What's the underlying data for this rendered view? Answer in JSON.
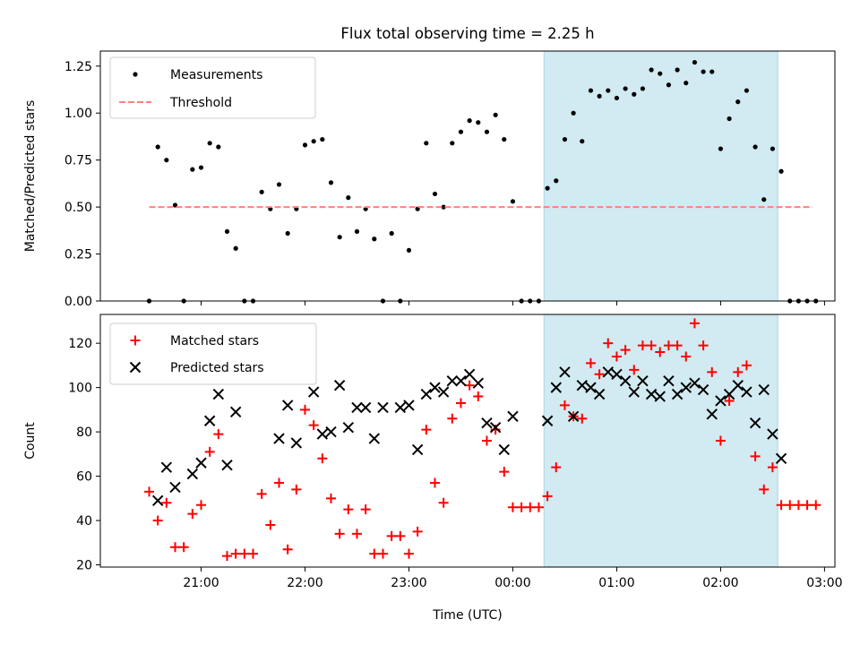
{
  "chart_data": [
    {
      "type": "scatter",
      "title": "Flux total observing time = 2.25 h",
      "ylabel": "Matched/Predicted stars",
      "xlabel": "",
      "xlim_hours": [
        20.03,
        27.1
      ],
      "ylim": [
        0,
        1.33
      ],
      "x_ticks": [
        "21:00",
        "22:00",
        "23:00",
        "00:00",
        "01:00",
        "02:00",
        "03:00"
      ],
      "y_ticks": [
        "0.00",
        "0.25",
        "0.50",
        "0.75",
        "1.00",
        "1.25"
      ],
      "shaded_span": {
        "start": "00:18",
        "end": "02:33",
        "color": "#add8e6"
      },
      "legend": {
        "position": "upper-left",
        "entries": [
          "Measurements",
          "Threshold"
        ]
      },
      "threshold": {
        "name": "Threshold",
        "y": 0.5,
        "x_start": "20:30",
        "x_end": "02:53",
        "color": "#ff8080"
      },
      "series": [
        {
          "name": "Measurements",
          "color": "#000000",
          "marker": "dot",
          "x": [
            "20:30",
            "20:35",
            "20:40",
            "20:45",
            "20:50",
            "20:55",
            "21:00",
            "21:05",
            "21:10",
            "21:15",
            "21:20",
            "21:25",
            "21:30",
            "21:35",
            "21:40",
            "21:45",
            "21:50",
            "21:55",
            "22:00",
            "22:05",
            "22:10",
            "22:15",
            "22:20",
            "22:25",
            "22:30",
            "22:35",
            "22:40",
            "22:45",
            "22:50",
            "22:55",
            "23:00",
            "23:05",
            "23:10",
            "23:15",
            "23:20",
            "23:25",
            "23:30",
            "23:35",
            "23:40",
            "23:45",
            "23:50",
            "23:55",
            "00:00",
            "00:05",
            "00:10",
            "00:15",
            "00:20",
            "00:25",
            "00:30",
            "00:35",
            "00:40",
            "00:45",
            "00:50",
            "00:55",
            "01:00",
            "01:05",
            "01:10",
            "01:15",
            "01:20",
            "01:25",
            "01:30",
            "01:35",
            "01:40",
            "01:45",
            "01:50",
            "01:55",
            "02:00",
            "02:05",
            "02:10",
            "02:15",
            "02:20",
            "02:25",
            "02:30",
            "02:35",
            "02:40",
            "02:45",
            "02:50",
            "02:55"
          ],
          "y": [
            0.0,
            0.82,
            0.75,
            0.51,
            0.0,
            0.7,
            0.71,
            0.84,
            0.82,
            0.37,
            0.28,
            0.0,
            0.0,
            0.58,
            0.49,
            0.62,
            0.36,
            0.49,
            0.83,
            0.85,
            0.86,
            0.63,
            0.34,
            0.55,
            0.37,
            0.49,
            0.33,
            0.0,
            0.36,
            0.0,
            0.27,
            0.49,
            0.84,
            0.57,
            0.5,
            0.84,
            0.9,
            0.96,
            0.95,
            0.9,
            0.99,
            0.86,
            0.53,
            0.0,
            0.0,
            0.0,
            0.6,
            0.64,
            0.86,
            1.0,
            0.85,
            1.12,
            1.09,
            1.12,
            1.08,
            1.13,
            1.1,
            1.13,
            1.23,
            1.21,
            1.15,
            1.23,
            1.16,
            1.27,
            1.22,
            1.22,
            0.81,
            0.97,
            1.06,
            1.12,
            0.82,
            0.54,
            0.81,
            0.69,
            0.0,
            0.0,
            0.0,
            0.0
          ]
        }
      ]
    },
    {
      "type": "scatter",
      "title": "",
      "ylabel": "Count",
      "xlabel": "Time (UTC)",
      "xlim_hours": [
        20.03,
        27.1
      ],
      "ylim": [
        19,
        133
      ],
      "x_ticks": [
        "21:00",
        "22:00",
        "23:00",
        "00:00",
        "01:00",
        "02:00",
        "03:00"
      ],
      "y_ticks": [
        "20",
        "40",
        "60",
        "80",
        "100",
        "120"
      ],
      "shaded_span": {
        "start": "00:18",
        "end": "02:33",
        "color": "#add8e6"
      },
      "legend": {
        "position": "upper-left",
        "entries": [
          "Matched stars",
          "Predicted stars"
        ]
      },
      "series": [
        {
          "name": "Matched stars",
          "color": "#ff0000",
          "marker": "plus",
          "x": [
            "20:30",
            "20:35",
            "20:40",
            "20:45",
            "20:50",
            "20:55",
            "21:00",
            "21:05",
            "21:10",
            "21:15",
            "21:20",
            "21:25",
            "21:30",
            "21:35",
            "21:40",
            "21:45",
            "21:50",
            "21:55",
            "22:00",
            "22:05",
            "22:10",
            "22:15",
            "22:20",
            "22:25",
            "22:30",
            "22:35",
            "22:40",
            "22:45",
            "22:50",
            "22:55",
            "23:00",
            "23:05",
            "23:10",
            "23:15",
            "23:20",
            "23:25",
            "23:30",
            "23:35",
            "23:40",
            "23:45",
            "23:50",
            "23:55",
            "00:00",
            "00:05",
            "00:10",
            "00:15",
            "00:20",
            "00:25",
            "00:30",
            "00:35",
            "00:40",
            "00:45",
            "00:50",
            "00:55",
            "01:00",
            "01:05",
            "01:10",
            "01:15",
            "01:20",
            "01:25",
            "01:30",
            "01:35",
            "01:40",
            "01:45",
            "01:50",
            "01:55",
            "02:00",
            "02:05",
            "02:10",
            "02:15",
            "02:20",
            "02:25",
            "02:30",
            "02:35",
            "02:40",
            "02:45",
            "02:50",
            "02:55"
          ],
          "y": [
            53,
            40,
            48,
            28,
            28,
            43,
            47,
            71,
            79,
            24,
            25,
            25,
            25,
            52,
            38,
            57,
            27,
            54,
            90,
            83,
            68,
            50,
            34,
            45,
            34,
            45,
            25,
            25,
            33,
            33,
            25,
            35,
            81,
            57,
            48,
            86,
            93,
            101,
            96,
            76,
            81,
            62,
            46,
            46,
            46,
            46,
            51,
            64,
            92,
            87,
            86,
            111,
            106,
            120,
            114,
            117,
            108,
            119,
            119,
            116,
            119,
            119,
            114,
            129,
            119,
            107,
            76,
            94,
            107,
            110,
            69,
            54,
            64,
            47,
            47,
            47,
            47,
            47
          ]
        },
        {
          "name": "Predicted stars",
          "color": "#000000",
          "marker": "x",
          "x": [
            "20:35",
            "20:40",
            "20:45",
            "20:55",
            "21:00",
            "21:05",
            "21:10",
            "21:15",
            "21:20",
            "21:45",
            "21:50",
            "21:55",
            "22:05",
            "22:10",
            "22:15",
            "22:20",
            "22:25",
            "22:30",
            "22:35",
            "22:40",
            "22:45",
            "22:55",
            "23:00",
            "23:05",
            "23:10",
            "23:15",
            "23:20",
            "23:25",
            "23:30",
            "23:35",
            "23:40",
            "23:45",
            "23:50",
            "23:55",
            "00:00",
            "00:20",
            "00:25",
            "00:30",
            "00:35",
            "00:40",
            "00:45",
            "00:50",
            "00:55",
            "01:00",
            "01:05",
            "01:10",
            "01:15",
            "01:20",
            "01:25",
            "01:30",
            "01:35",
            "01:40",
            "01:45",
            "01:50",
            "01:55",
            "02:00",
            "02:05",
            "02:10",
            "02:15",
            "02:20",
            "02:25",
            "02:30",
            "02:35"
          ],
          "y": [
            49,
            64,
            55,
            61,
            66,
            85,
            97,
            65,
            89,
            77,
            92,
            75,
            98,
            79,
            80,
            101,
            82,
            91,
            91,
            77,
            91,
            91,
            92,
            72,
            97,
            100,
            98,
            103,
            103,
            106,
            102,
            84,
            82,
            72,
            87,
            85,
            100,
            107,
            87,
            101,
            100,
            97,
            107,
            106,
            103,
            98,
            103,
            97,
            96,
            103,
            97,
            100,
            102,
            99,
            88,
            94,
            97,
            101,
            98,
            84,
            99,
            79,
            68
          ]
        }
      ]
    }
  ]
}
